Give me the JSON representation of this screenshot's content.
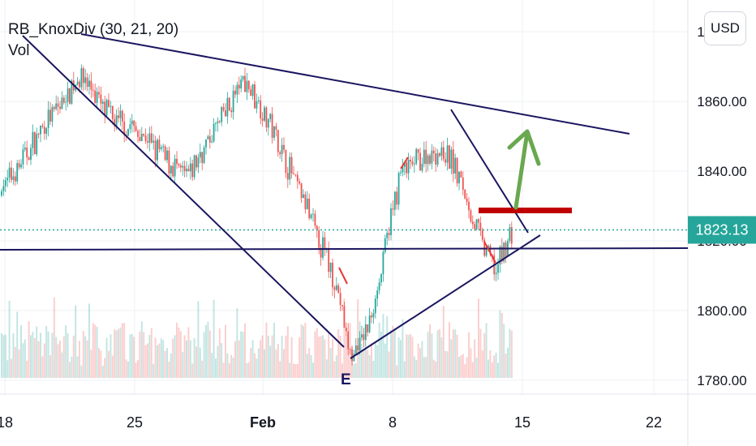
{
  "indicator_label": "RB_KnoxDiv (30, 21, 20)",
  "volume_label": "Vol",
  "currency_button": "USD",
  "colors": {
    "up": "#26a69a",
    "down": "#ef5350",
    "trendline": "#1a1660",
    "divergence": "#e53935",
    "resistance": "#c00000",
    "arrow": "#6aa84f",
    "last_price_bg": "#26a69a",
    "grid": "#eef0f3"
  },
  "chart_data": {
    "type": "candlestick",
    "y_axis": {
      "ticks": [
        "1780.00",
        "1800.00",
        "1820.00",
        "1840.00",
        "1860.00",
        "1880.00"
      ],
      "range": [
        1776,
        1884
      ]
    },
    "x_axis": {
      "ticks": [
        "18",
        "25",
        "Feb",
        "8",
        "15",
        "22"
      ]
    },
    "last_price": "1823.13",
    "annotations": {
      "pivot_label": "E",
      "resistance_level": 1826.8,
      "support_level": 1816.7
    },
    "price_path": [
      {
        "x": "18",
        "y": 1836
      },
      {
        "x": "21",
        "y": 1868
      },
      {
        "x": "23",
        "y": 1856
      },
      {
        "x": "25",
        "y": 1852
      },
      {
        "x": "28",
        "y": 1838
      },
      {
        "x": "30",
        "y": 1866
      },
      {
        "x": "Feb 1",
        "y": 1858
      },
      {
        "x": "3",
        "y": 1834
      },
      {
        "x": "4",
        "y": 1808
      },
      {
        "x": "5",
        "y": 1786
      },
      {
        "x": "6",
        "y": 1796
      },
      {
        "x": "7",
        "y": 1812
      },
      {
        "x": "8",
        "y": 1840
      },
      {
        "x": "10",
        "y": 1846
      },
      {
        "x": "11",
        "y": 1842
      },
      {
        "x": "12",
        "y": 1820
      },
      {
        "x": "13",
        "y": 1812
      },
      {
        "x": "14",
        "y": 1823.13
      }
    ]
  }
}
